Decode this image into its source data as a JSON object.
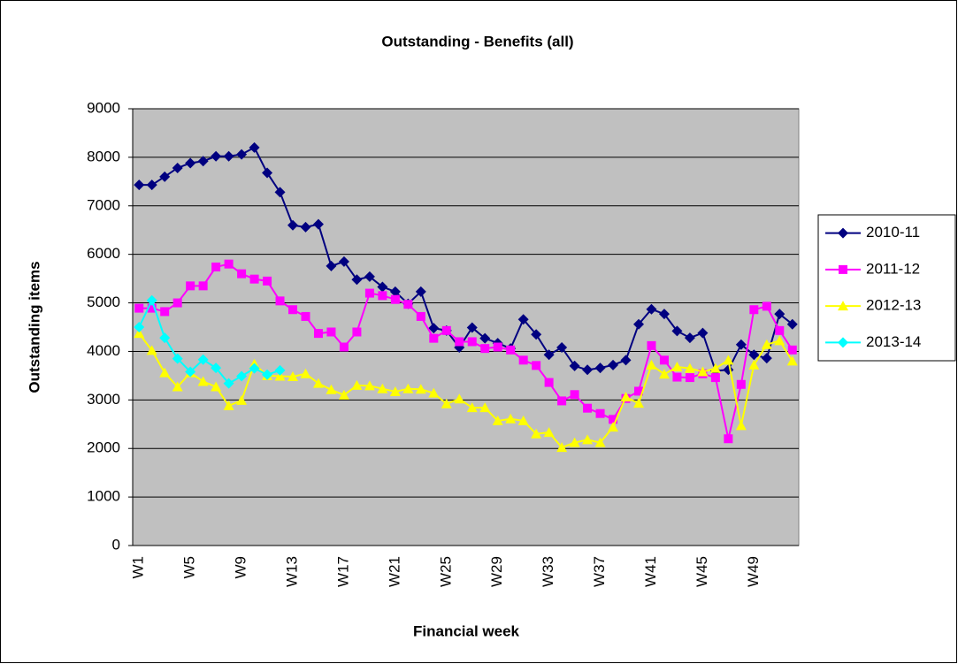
{
  "chart_data": {
    "type": "line",
    "title": "Outstanding - Benefits (all)",
    "xlabel": "Financial week",
    "ylabel": "Outstanding items",
    "categories": [
      "W1",
      null,
      null,
      null,
      "W5",
      null,
      null,
      null,
      "W9",
      null,
      null,
      null,
      "W13",
      null,
      null,
      null,
      "W17",
      null,
      null,
      null,
      "W21",
      null,
      null,
      null,
      "W25",
      null,
      null,
      null,
      "W29",
      null,
      null,
      null,
      "W33",
      null,
      null,
      null,
      "W37",
      null,
      null,
      null,
      "W41",
      null,
      null,
      null,
      "W45",
      null,
      null,
      null,
      "W49",
      null,
      null,
      null
    ],
    "ylim": [
      0,
      9000
    ],
    "yticks": [
      0,
      1000,
      2000,
      3000,
      4000,
      5000,
      6000,
      7000,
      8000,
      9000
    ],
    "grid": true,
    "legend": "right",
    "background": "#c0c0c0",
    "series": [
      {
        "name": "2010-11",
        "color": "#000080",
        "marker": "diamond",
        "values": [
          7430,
          7430,
          7600,
          7780,
          7880,
          7920,
          8020,
          8020,
          8060,
          8200,
          7680,
          7280,
          6600,
          6560,
          6620,
          5760,
          5850,
          5480,
          5540,
          5330,
          5230,
          4980,
          5230,
          4480,
          4430,
          4080,
          4490,
          4270,
          4170,
          4060,
          4660,
          4350,
          3930,
          4080,
          3700,
          3620,
          3660,
          3720,
          3820,
          4560,
          4870,
          4770,
          4420,
          4280,
          4380,
          3600,
          3620,
          4140,
          3930,
          3860,
          4770,
          4560
        ]
      },
      {
        "name": "2011-12",
        "color": "#ff00ff",
        "marker": "square",
        "values": [
          4890,
          4890,
          4820,
          5000,
          5350,
          5350,
          5740,
          5800,
          5600,
          5490,
          5450,
          5040,
          4860,
          4720,
          4370,
          4400,
          4090,
          4400,
          5200,
          5150,
          5070,
          4970,
          4720,
          4270,
          4430,
          4200,
          4200,
          4060,
          4090,
          4030,
          3820,
          3710,
          3360,
          2980,
          3110,
          2830,
          2720,
          2600,
          3030,
          3180,
          4120,
          3820,
          3470,
          3460,
          3540,
          3460,
          2200,
          3320,
          4860,
          4930,
          4430,
          4030
        ]
      },
      {
        "name": "2012-13",
        "color": "#ffff00",
        "marker": "triangle",
        "values": [
          4370,
          4020,
          3560,
          3270,
          3560,
          3380,
          3270,
          2880,
          2990,
          3740,
          3500,
          3490,
          3480,
          3540,
          3340,
          3210,
          3100,
          3300,
          3290,
          3230,
          3170,
          3230,
          3220,
          3140,
          2920,
          3020,
          2840,
          2840,
          2570,
          2610,
          2570,
          2300,
          2330,
          2020,
          2120,
          2180,
          2120,
          2440,
          3060,
          2930,
          3720,
          3530,
          3680,
          3650,
          3580,
          3650,
          3820,
          2470,
          3720,
          4140,
          4220,
          3800
        ]
      },
      {
        "name": "2013-14",
        "color": "#00ffff",
        "marker": "diamond",
        "values": [
          4500,
          5050,
          4280,
          3850,
          3580,
          3830,
          3660,
          3340,
          3490,
          3650,
          3520,
          3610,
          null,
          null,
          null,
          null,
          null,
          null,
          null,
          null,
          null,
          null,
          null,
          null,
          null,
          null,
          null,
          null,
          null,
          null,
          null,
          null,
          null,
          null,
          null,
          null,
          null,
          null,
          null,
          null,
          null,
          null,
          null,
          null,
          null,
          null,
          null,
          null,
          null,
          null,
          null,
          null
        ]
      }
    ]
  }
}
